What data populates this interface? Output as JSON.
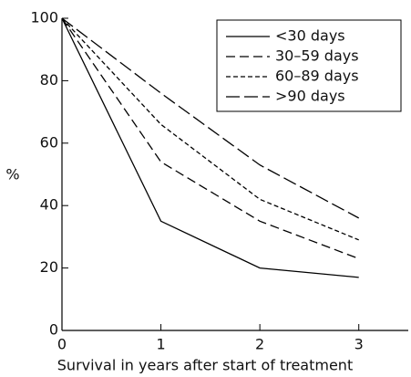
{
  "chart_data": {
    "type": "line",
    "x_label": "Survival in years after start of treatment",
    "y_label": "%",
    "x": [
      0,
      1,
      2,
      3
    ],
    "series": [
      {
        "name": "<30 days",
        "color": "#000000",
        "dash": "none",
        "values": [
          100,
          35,
          20,
          17
        ]
      },
      {
        "name": "30–59 days",
        "color": "#000000",
        "dash": "10,5",
        "values": [
          100,
          54,
          35,
          23
        ]
      },
      {
        "name": "60–89 days",
        "color": "#000000",
        "dash": "5,3",
        "values": [
          100,
          66,
          42,
          29
        ]
      },
      {
        "name": ">90 days",
        "color": "#000000",
        "dash": "15,5",
        "values": [
          100,
          76,
          53,
          36
        ]
      }
    ],
    "xlim": [
      0,
      3.5
    ],
    "xticks": [
      0,
      1,
      2,
      3
    ],
    "ylim": [
      0,
      100
    ],
    "yticks": [
      0,
      20,
      40,
      60,
      80,
      100
    ],
    "grid": false,
    "legend": "upper right"
  }
}
